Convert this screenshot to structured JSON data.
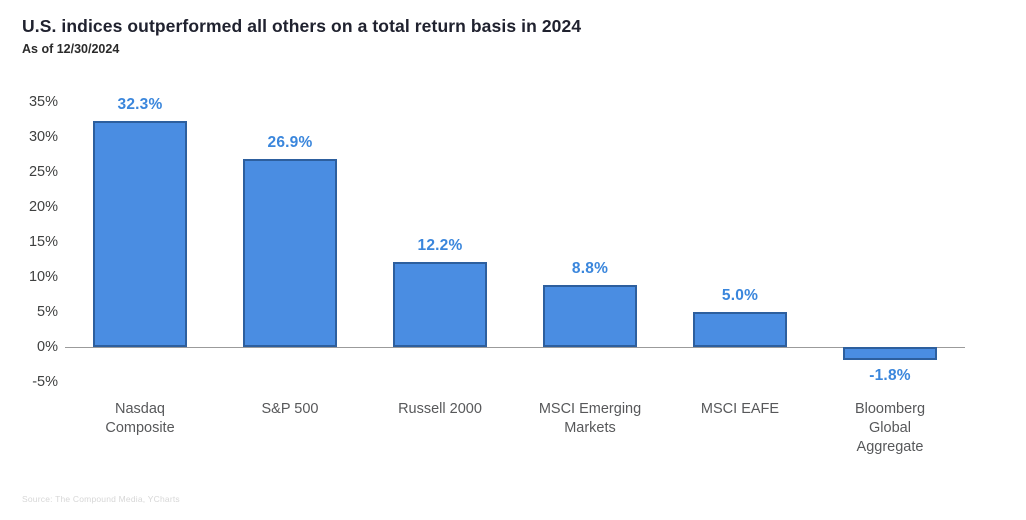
{
  "header": {
    "title": "U.S. indices outperformed all others on a total return basis in 2024",
    "subtitle": "As of 12/30/2024"
  },
  "source_note": "Source: The Compound Media, YCharts",
  "chart_data": {
    "type": "bar",
    "title": "U.S. indices outperformed all others on a total return basis in 2024",
    "subtitle": "As of 12/30/2024",
    "categories": [
      "Nasdaq Composite",
      "S&P 500",
      "Russell 2000",
      "MSCI Emerging Markets",
      "MSCI EAFE",
      "Bloomberg Global Aggregate"
    ],
    "category_lines": [
      [
        "Nasdaq",
        "Composite"
      ],
      [
        "S&P 500"
      ],
      [
        "Russell 2000"
      ],
      [
        "MSCI Emerging",
        "Markets"
      ],
      [
        "MSCI EAFE"
      ],
      [
        "Bloomberg",
        "Global",
        "Aggregate"
      ]
    ],
    "values": [
      32.3,
      26.9,
      12.2,
      8.8,
      5.0,
      -1.8
    ],
    "value_labels": [
      "32.3%",
      "26.9%",
      "12.2%",
      "8.8%",
      "5.0%",
      "-1.8%"
    ],
    "xlabel": "",
    "ylabel": "",
    "ylim": [
      -5,
      35
    ],
    "ytick_step": 5,
    "ytick_labels": [
      "35%",
      "30%",
      "25%",
      "20%",
      "15%",
      "10%",
      "5%",
      "0%",
      "-5%"
    ],
    "grid": false,
    "legend": "none",
    "colors": {
      "bar_fill": "#4a8de2",
      "bar_border": "#2d5f9e",
      "value_label": "#3a86dc",
      "axis_text": "#3f4040",
      "category_text": "#57585a",
      "zero_line": "#9b9b9b",
      "title_text": "#20222f"
    }
  }
}
